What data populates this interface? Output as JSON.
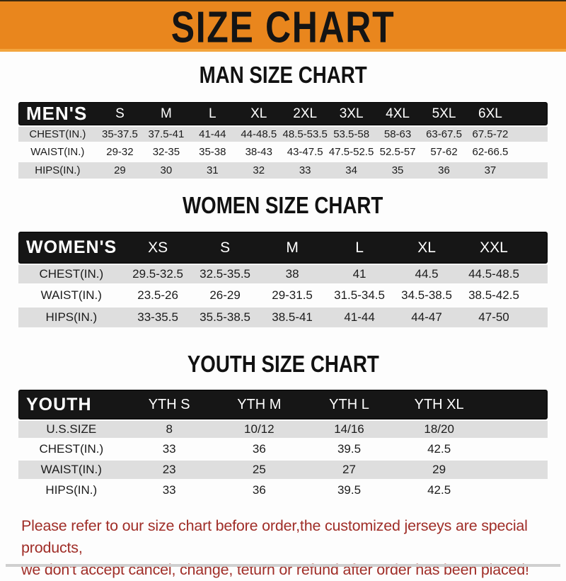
{
  "banner": {
    "title": "SIZE CHART",
    "background_color": "#E9861D",
    "text_color": "#141414"
  },
  "sections": [
    {
      "heading": "MAN SIZE CHART",
      "group_label": "MEN'S",
      "columns": [
        "S",
        "M",
        "L",
        "XL",
        "2XL",
        "3XL",
        "4XL",
        "5XL",
        "6XL"
      ],
      "rows": [
        {
          "label": "CHEST(IN.)",
          "values": [
            "35-37.5",
            "37.5-41",
            "41-44",
            "44-48.5",
            "48.5-53.5",
            "53.5-58",
            "58-63",
            "63-67.5",
            "67.5-72"
          ]
        },
        {
          "label": "WAIST(IN.)",
          "values": [
            "29-32",
            "32-35",
            "35-38",
            "38-43",
            "43-47.5",
            "47.5-52.5",
            "52.5-57",
            "57-62",
            "62-66.5"
          ]
        },
        {
          "label": "HIPS(IN.)",
          "values": [
            "29",
            "30",
            "31",
            "32",
            "33",
            "34",
            "35",
            "36",
            "37"
          ]
        }
      ]
    },
    {
      "heading": "WOMEN SIZE CHART",
      "group_label": "WOMEN'S",
      "columns": [
        "XS",
        "S",
        "M",
        "L",
        "XL",
        "XXL"
      ],
      "rows": [
        {
          "label": "CHEST(IN.)",
          "values": [
            "29.5-32.5",
            "32.5-35.5",
            "38",
            "41",
            "44.5",
            "44.5-48.5"
          ]
        },
        {
          "label": "WAIST(IN.)",
          "values": [
            "23.5-26",
            "26-29",
            "29-31.5",
            "31.5-34.5",
            "34.5-38.5",
            "38.5-42.5"
          ]
        },
        {
          "label": "HIPS(IN.)",
          "values": [
            "33-35.5",
            "35.5-38.5",
            "38.5-41",
            "41-44",
            "44-47",
            "47-50"
          ]
        }
      ]
    },
    {
      "heading": "YOUTH SIZE CHART",
      "group_label": "YOUTH",
      "columns": [
        "YTH S",
        "YTH M",
        "YTH L",
        "YTH XL"
      ],
      "rows": [
        {
          "label": "U.S.SIZE",
          "values": [
            "8",
            "10/12",
            "14/16",
            "18/20"
          ]
        },
        {
          "label": "CHEST(IN.)",
          "values": [
            "33",
            "36",
            "39.5",
            "42.5"
          ]
        },
        {
          "label": "WAIST(IN.)",
          "values": [
            "23",
            "25",
            "27",
            "29"
          ]
        },
        {
          "label": "HIPS(IN.)",
          "values": [
            "33",
            "36",
            "39.5",
            "42.5"
          ]
        }
      ]
    }
  ],
  "footer": {
    "line1": "Please refer to our size chart before order,the customized jerseys are special products,",
    "line2": "we don't accept cancel, change, teturn or refund after order has been placed!",
    "text_color": "#A02E28"
  },
  "colors": {
    "banner_orange": "#E9861D",
    "banner_orange_light_edge": "#F3A53E",
    "table_header_black": "#161616",
    "row_gray": "#dedede",
    "row_white": "#fdfdfd",
    "footer_red": "#A02E28"
  }
}
